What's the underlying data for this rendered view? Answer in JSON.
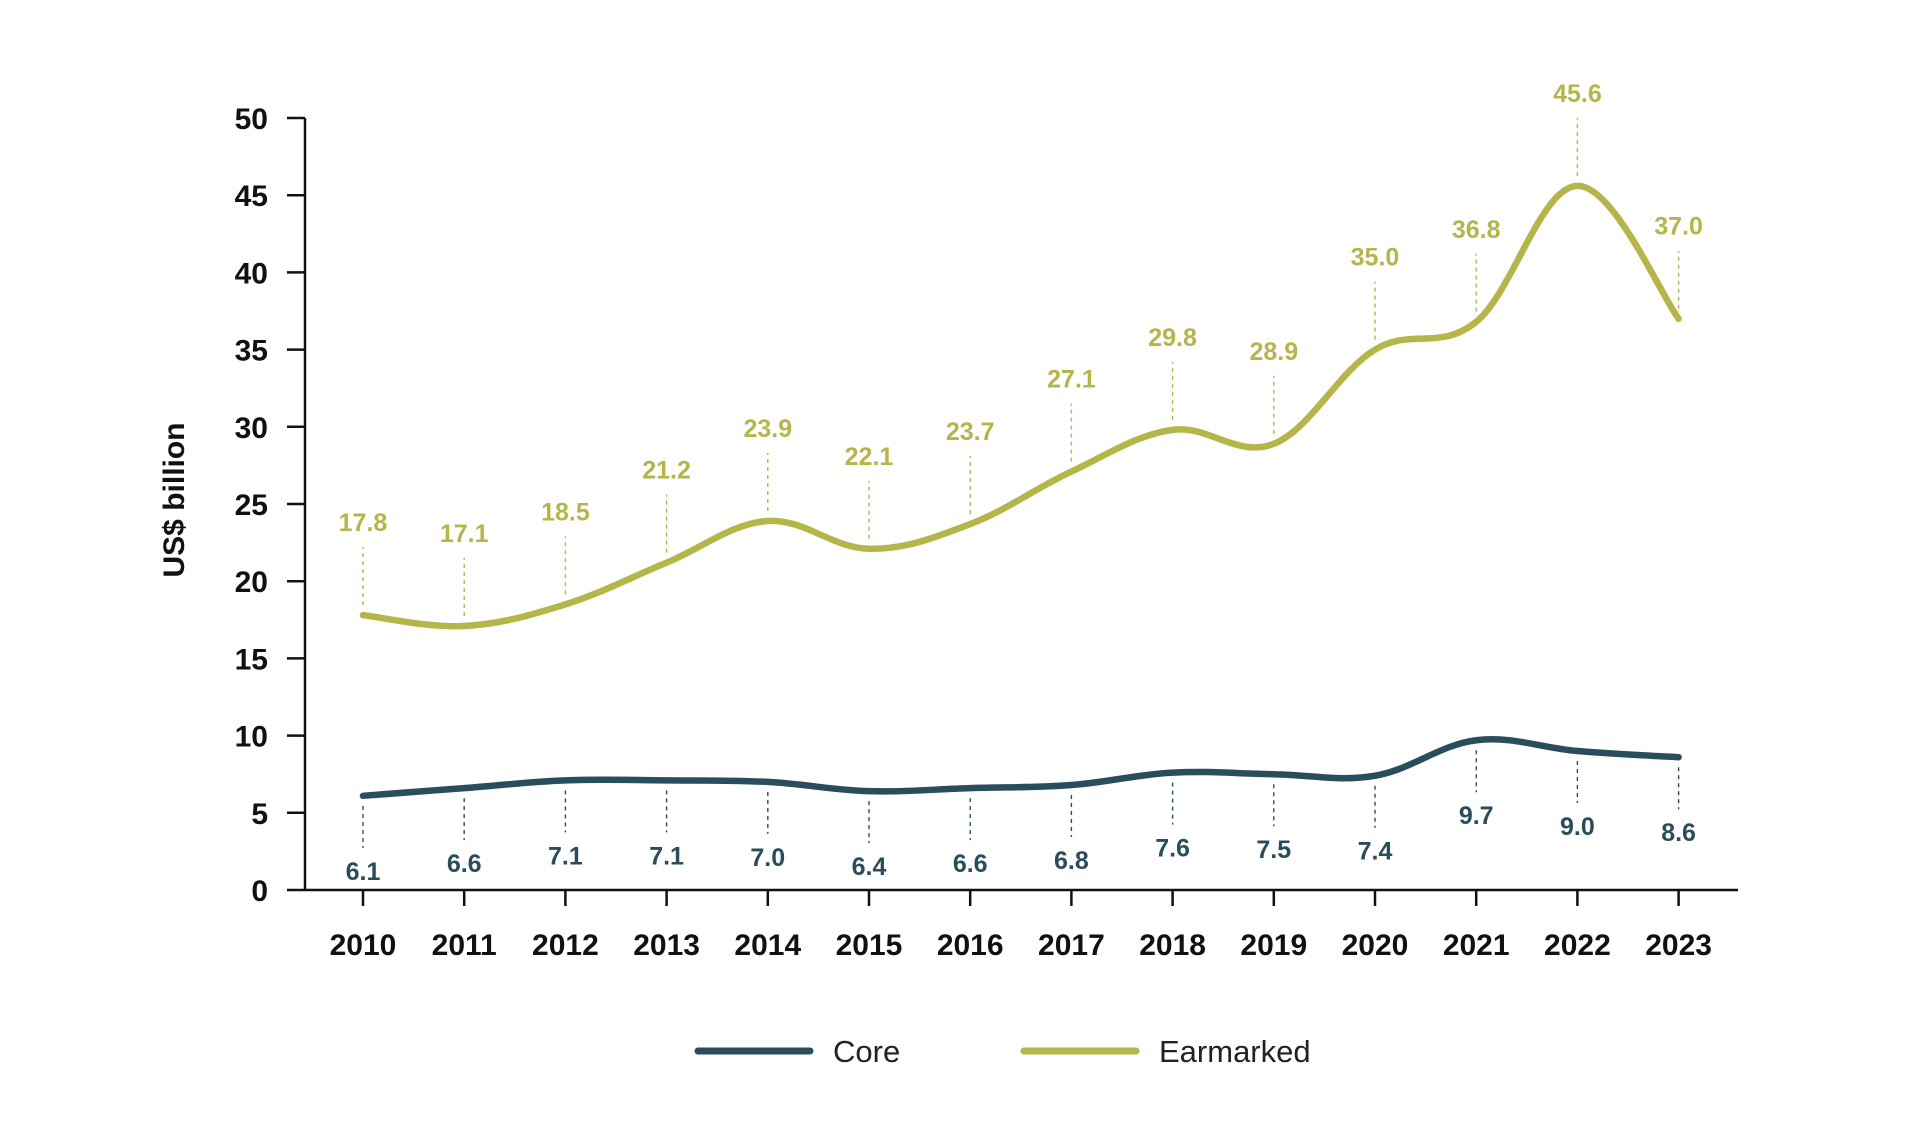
{
  "chart_data": {
    "type": "line",
    "title": "",
    "xlabel": "",
    "ylabel": "US$ billion",
    "ylim": [
      0,
      50
    ],
    "y_ticks": [
      "0",
      "5",
      "10",
      "15",
      "20",
      "25",
      "30",
      "35",
      "40",
      "45",
      "50"
    ],
    "categories": [
      "2010",
      "2011",
      "2012",
      "2013",
      "2014",
      "2015",
      "2016",
      "2017",
      "2018",
      "2019",
      "2020",
      "2021",
      "2022",
      "2023"
    ],
    "series": [
      {
        "name": "Core",
        "color": "#2a4d5c",
        "values": [
          6.1,
          6.6,
          7.1,
          7.1,
          7.0,
          6.4,
          6.6,
          6.8,
          7.6,
          7.5,
          7.4,
          9.7,
          9.0,
          8.6
        ],
        "labels": [
          "6.1",
          "6.6",
          "7.1",
          "7.1",
          "7.0",
          "6.4",
          "6.6",
          "6.8",
          "7.6",
          "7.5",
          "7.4",
          "9.7",
          "9.0",
          "8.6"
        ],
        "label_position": "below"
      },
      {
        "name": "Earmarked",
        "color": "#b5b54a",
        "values": [
          17.8,
          17.1,
          18.5,
          21.2,
          23.9,
          22.1,
          23.7,
          27.1,
          29.8,
          28.9,
          35.0,
          36.8,
          45.6,
          37.0
        ],
        "labels": [
          "17.8",
          "17.1",
          "18.5",
          "21.2",
          "23.9",
          "22.1",
          "23.7",
          "27.1",
          "29.8",
          "28.9",
          "35.0",
          "36.8",
          "45.6",
          "37.0"
        ],
        "label_position": "above"
      }
    ],
    "grid": false,
    "legend": "bottom-center",
    "axis_color": "#111111",
    "data_label_leaders": "dashed"
  }
}
